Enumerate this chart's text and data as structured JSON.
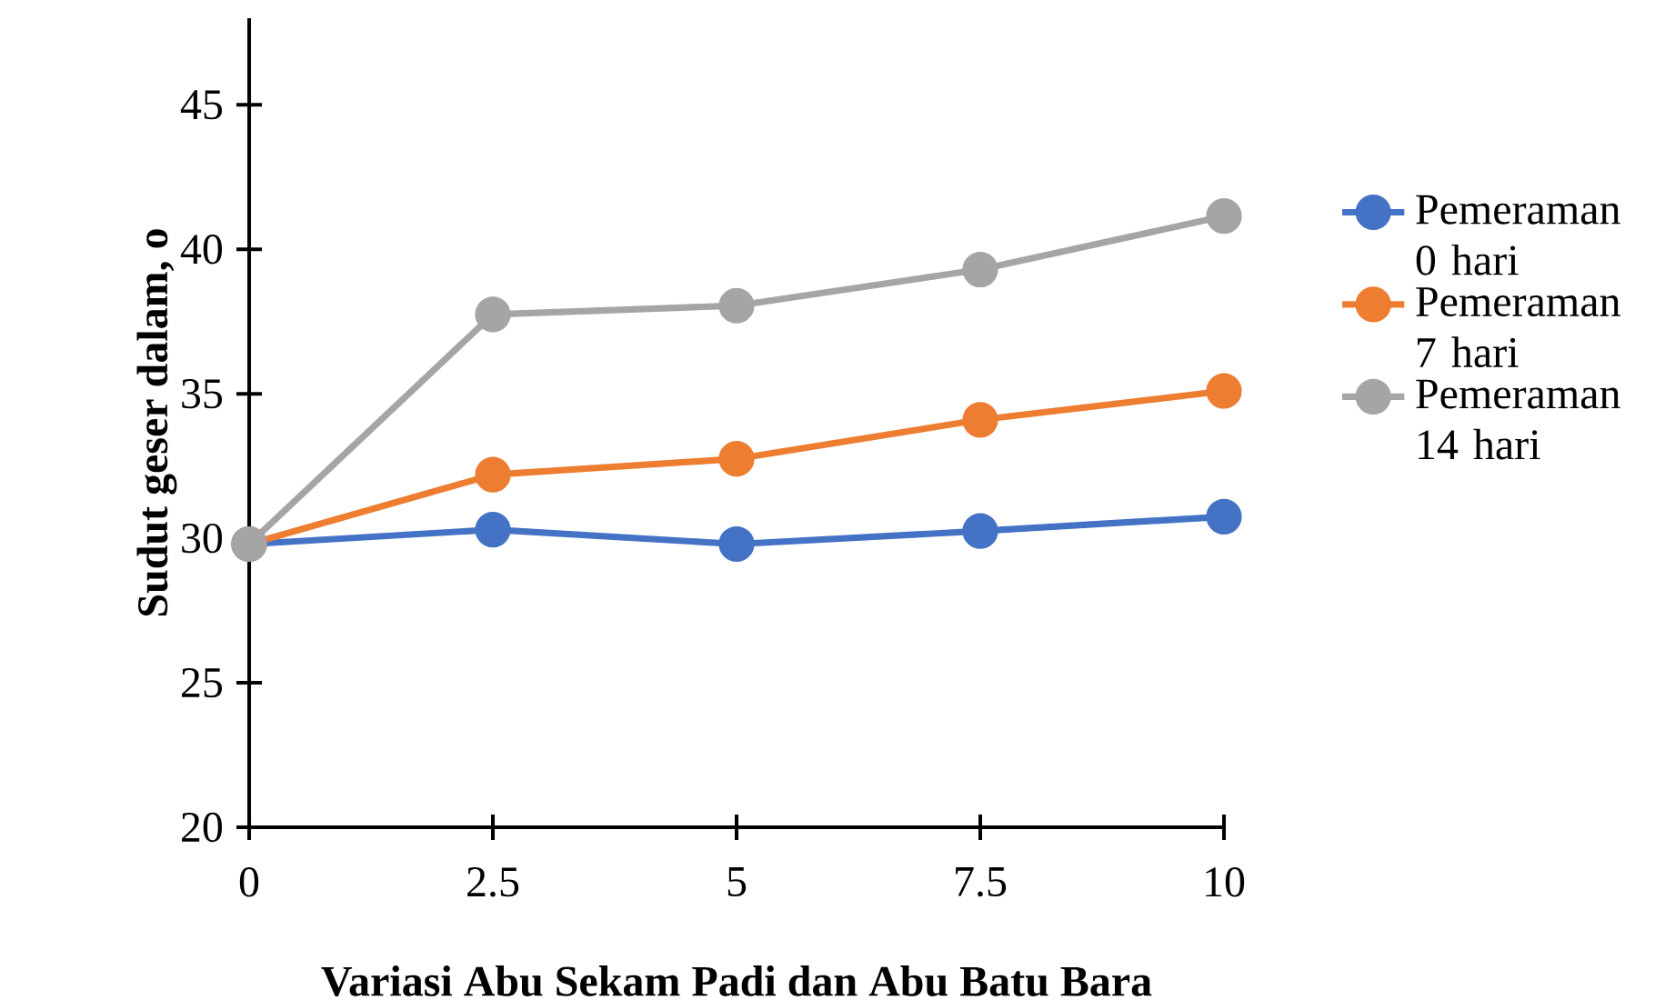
{
  "chart_data": {
    "type": "line",
    "xlabel": "Variasi Abu Sekam Padi dan Abu Batu Bara",
    "ylabel": "Sudut geser dalam, o",
    "x": [
      0,
      2.5,
      5,
      7.5,
      10
    ],
    "series": [
      {
        "name": "Pemeraman 0 hari",
        "color": "#4472c4",
        "values": [
          29.8,
          30.3,
          29.8,
          30.25,
          30.75
        ]
      },
      {
        "name": "Pemeraman 7 hari",
        "color": "#ed7d31",
        "values": [
          29.8,
          32.2,
          32.75,
          34.1,
          35.1
        ]
      },
      {
        "name": "Pemeraman 14 hari",
        "color": "#a5a5a5",
        "values": [
          29.8,
          37.75,
          38.05,
          39.3,
          41.15
        ]
      }
    ],
    "xlim": [
      0,
      10
    ],
    "ylim": [
      20,
      48
    ],
    "xticks": [
      0,
      2.5,
      5,
      7.5,
      10
    ],
    "yticks": [
      20,
      25,
      30,
      35,
      40,
      45
    ],
    "legend": "right",
    "marker": "circle"
  }
}
